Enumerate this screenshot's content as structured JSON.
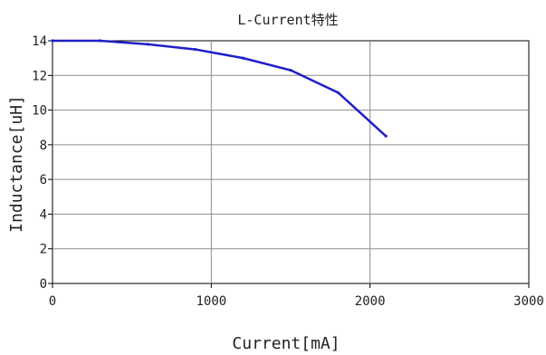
{
  "chart_data": {
    "type": "line",
    "title": "L-Current特性",
    "xlabel": "Current[mA]",
    "ylabel": "Inductance[uH]",
    "xlim": [
      0,
      3000
    ],
    "ylim": [
      0,
      14
    ],
    "xticks": [
      "0",
      "1000",
      "2000",
      "3000"
    ],
    "yticks": [
      "0",
      "2",
      "4",
      "6",
      "8",
      "10",
      "12",
      "14"
    ],
    "grid": true,
    "series": [
      {
        "color": "#1f1fc8",
        "x": [
          0,
          300,
          600,
          900,
          1200,
          1500,
          1800,
          2100
        ],
        "y": [
          14.0,
          14.0,
          13.8,
          13.5,
          13.0,
          12.3,
          11.0,
          8.5
        ]
      }
    ]
  }
}
